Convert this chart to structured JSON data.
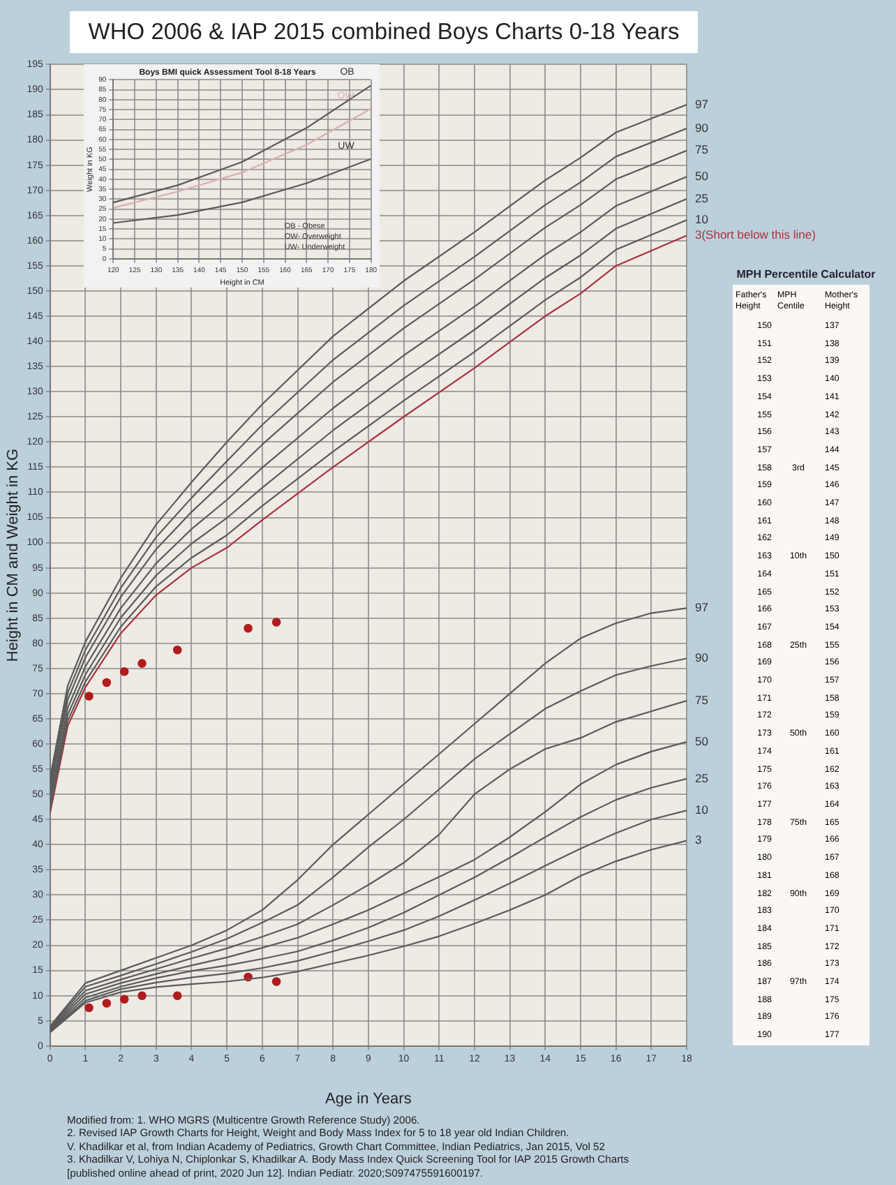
{
  "chart_data": [
    {
      "type": "line",
      "title": "WHO 2006 & IAP 2015 combined Boys Charts 0-18 Years",
      "xlabel": "Age in Years",
      "ylabel": "Height in CM and Weight in KG",
      "xlim": [
        0,
        18
      ],
      "xticks": [
        0,
        1,
        2,
        3,
        4,
        5,
        6,
        7,
        8,
        9,
        10,
        11,
        12,
        13,
        14,
        15,
        16,
        17,
        18
      ],
      "ylim": [
        0,
        195
      ],
      "yticks": [
        0,
        5,
        10,
        15,
        20,
        25,
        30,
        35,
        40,
        45,
        50,
        55,
        60,
        65,
        70,
        75,
        80,
        85,
        90,
        95,
        100,
        105,
        110,
        115,
        120,
        125,
        130,
        135,
        140,
        145,
        150,
        155,
        160,
        165,
        170,
        175,
        180,
        185,
        190,
        195
      ],
      "grid": true,
      "marker": "none",
      "series": [
        {
          "name": "97",
          "color": "#5a5a5a",
          "x": [
            0,
            0.5,
            1,
            2,
            3,
            4,
            5,
            6,
            8,
            10,
            12,
            14,
            15,
            16,
            18
          ],
          "values": [
            53.3,
            71.6,
            80.3,
            93.0,
            103.6,
            112,
            120,
            127.5,
            141,
            152,
            161.7,
            172,
            176.5,
            181.5,
            187
          ]
        },
        {
          "name": "90",
          "color": "#5a5a5a",
          "x": [
            0,
            0.5,
            1,
            2,
            3,
            4,
            5,
            6,
            8,
            10,
            12,
            14,
            15,
            16,
            18
          ],
          "values": [
            52.0,
            70.2,
            78.7,
            91.0,
            101.1,
            108.9,
            116.2,
            123.4,
            136.3,
            147.1,
            156.8,
            167.1,
            171.6,
            176.7,
            182.3
          ]
        },
        {
          "name": "75",
          "color": "#5a5a5a",
          "x": [
            0,
            0.5,
            1,
            2,
            3,
            4,
            5,
            6,
            8,
            10,
            12,
            14,
            15,
            16,
            18
          ],
          "values": [
            50.9,
            68.8,
            77.2,
            89.2,
            98.7,
            106.1,
            112.7,
            119.5,
            131.9,
            142.6,
            152.3,
            162.6,
            167.1,
            172.2,
            177.9
          ]
        },
        {
          "name": "50",
          "color": "#5a5a5a",
          "x": [
            0,
            0.5,
            1,
            2,
            3,
            4,
            5,
            6,
            8,
            10,
            12,
            14,
            15,
            16,
            18
          ],
          "values": [
            49.5,
            67.2,
            75.4,
            87.0,
            95.9,
            102.7,
            108.5,
            114.9,
            126.7,
            137.2,
            146.9,
            157.2,
            161.7,
            166.9,
            172.7
          ]
        },
        {
          "name": "25",
          "color": "#5a5a5a",
          "x": [
            0,
            0.5,
            1,
            2,
            3,
            4,
            5,
            6,
            8,
            10,
            12,
            14,
            15,
            16,
            18
          ],
          "values": [
            48.3,
            65.8,
            73.8,
            85.1,
            93.5,
            99.8,
            104.9,
            110.9,
            122.3,
            132.6,
            142.3,
            152.6,
            157.1,
            162.4,
            168.3
          ]
        },
        {
          "name": "10",
          "color": "#5a5a5a",
          "x": [
            0,
            0.5,
            1,
            2,
            3,
            4,
            5,
            6,
            8,
            10,
            12,
            14,
            15,
            16,
            18
          ],
          "values": [
            47.1,
            64.6,
            72.4,
            83.3,
            91.3,
            97.0,
            101.5,
            107.3,
            118.1,
            128.2,
            137.9,
            148.2,
            152.7,
            158.2,
            164.1
          ]
        },
        {
          "name": "3(Short below this line)",
          "color": "#a8323e",
          "x": [
            0,
            0.5,
            1,
            2,
            3,
            4,
            5,
            6,
            8,
            10,
            12,
            14,
            15,
            16,
            18
          ],
          "values": [
            46.3,
            63.6,
            71.3,
            82,
            89.6,
            95,
            99,
            104.5,
            115,
            125,
            134.7,
            145,
            149.5,
            155,
            161
          ]
        },
        {
          "name": "97",
          "color": "#5a5a5a",
          "x": [
            0,
            1,
            2,
            3,
            4,
            5,
            6,
            7,
            8,
            9,
            10,
            11,
            12,
            13,
            14,
            15,
            16,
            17,
            18
          ],
          "values": [
            3.9,
            12.5,
            15,
            17.5,
            20,
            23,
            27,
            33,
            40,
            46,
            52,
            58,
            64,
            70,
            76,
            81,
            84,
            86,
            87
          ]
        },
        {
          "name": "90",
          "color": "#5a5a5a",
          "x": [
            0,
            1,
            2,
            3,
            4,
            5,
            6,
            7,
            8,
            9,
            10,
            11,
            12,
            13,
            14,
            15,
            16,
            17,
            18
          ],
          "values": [
            3.7,
            11.8,
            14,
            16.3,
            18.7,
            21.3,
            24.5,
            28,
            33.5,
            39.5,
            45,
            51,
            57,
            62,
            67,
            70.5,
            73.7,
            75.5,
            77
          ]
        },
        {
          "name": "75",
          "color": "#5a5a5a",
          "x": [
            0,
            1,
            2,
            3,
            4,
            5,
            6,
            7,
            8,
            9,
            10,
            11,
            12,
            13,
            14,
            15,
            16,
            17,
            18
          ],
          "values": [
            3.5,
            11,
            13.2,
            15.3,
            17.4,
            19.4,
            21.7,
            24.2,
            28,
            32,
            36.4,
            42,
            50,
            55,
            59,
            61.2,
            64.4,
            66.5,
            68.6
          ]
        },
        {
          "name": "50",
          "color": "#5a5a5a",
          "x": [
            0,
            1,
            2,
            3,
            4,
            5,
            6,
            7,
            8,
            9,
            10,
            11,
            12,
            13,
            14,
            15,
            16,
            17,
            18
          ],
          "values": [
            3.3,
            10.3,
            12.5,
            14.3,
            16,
            17.6,
            19.5,
            21.5,
            24.2,
            27,
            30.3,
            33.6,
            37,
            41.5,
            46.5,
            52,
            55.9,
            58.5,
            60.4
          ]
        },
        {
          "name": "25",
          "color": "#5a5a5a",
          "x": [
            0,
            1,
            2,
            3,
            4,
            5,
            6,
            7,
            8,
            9,
            10,
            11,
            12,
            13,
            14,
            15,
            16,
            17,
            18
          ],
          "values": [
            3.1,
            9.6,
            11.8,
            13.5,
            14.9,
            16,
            17.3,
            18.8,
            21,
            23.5,
            26.5,
            30,
            33.5,
            37.4,
            41.5,
            45.5,
            48.9,
            51.3,
            53.1
          ]
        },
        {
          "name": "10",
          "color": "#5a5a5a",
          "x": [
            0,
            1,
            2,
            3,
            4,
            5,
            6,
            7,
            8,
            9,
            10,
            11,
            12,
            13,
            14,
            15,
            16,
            17,
            18
          ],
          "values": [
            2.9,
            9,
            11.3,
            12.6,
            13.6,
            14.4,
            15.5,
            16.9,
            18.8,
            20.8,
            23,
            25.8,
            29,
            32.3,
            35.8,
            39.2,
            42.3,
            45,
            46.8
          ]
        },
        {
          "name": "3",
          "color": "#5a5a5a",
          "x": [
            0,
            1,
            2,
            3,
            4,
            5,
            6,
            7,
            8,
            9,
            10,
            11,
            12,
            13,
            14,
            15,
            16,
            17,
            18
          ],
          "values": [
            2.7,
            8.6,
            10.7,
            11.7,
            12.3,
            12.8,
            13.6,
            14.8,
            16.4,
            18,
            19.8,
            21.8,
            24.3,
            27,
            30,
            33.8,
            36.7,
            39,
            40.8
          ]
        },
        {
          "type": "scatter",
          "marker": "circle",
          "color": "#b01c1c",
          "x": [
            1.1,
            1.6,
            2.1,
            2.6,
            3.6,
            5.6,
            6.4
          ],
          "values": [
            69.5,
            72.2,
            74.4,
            76.0,
            78.7,
            83.0,
            84.2
          ]
        },
        {
          "type": "scatter",
          "marker": "circle",
          "color": "#b01c1c",
          "x": [
            1.1,
            1.6,
            2.1,
            2.6,
            3.6,
            5.6,
            6.4
          ],
          "values": [
            7.6,
            8.5,
            9.3,
            10.0,
            10.0,
            13.7,
            12.8
          ]
        }
      ],
      "annotations": [
        "Modified from: 1. WHO MGRS (Multicentre Growth Reference Study) 2006.",
        "2. Revised IAP Growth Charts for Height, Weight and Body Mass Index for 5 to 18 year old Indian Children.",
        "V. Khadilkar et al, from Indian Academy of Pediatrics, Growth Chart Committee, Indian Pediatrics, Jan 2015, Vol 52",
        "3. Khadilkar V, Lohiya N, Chiplonkar S, Khadilkar A. Body Mass Index Quick Screening Tool for IAP 2015 Growth Charts",
        "[published online ahead of print, 2020 Jun 12]. Indian Pediatr. 2020;S097475591600197."
      ]
    },
    {
      "type": "line",
      "title": "Boys BMI quick Assessment Tool 8-18 Years",
      "xlabel": "Height in CM",
      "ylabel": "Weight in KG",
      "xlim": [
        120,
        180
      ],
      "xticks": [
        120,
        125,
        130,
        135,
        140,
        145,
        150,
        155,
        160,
        165,
        170,
        175,
        180
      ],
      "ylim": [
        0,
        90
      ],
      "yticks": [
        0,
        5,
        10,
        15,
        20,
        25,
        30,
        35,
        40,
        45,
        50,
        55,
        60,
        65,
        70,
        75,
        80,
        85,
        90
      ],
      "grid": true,
      "marker": "none",
      "x": [
        120,
        135,
        150,
        165,
        180
      ],
      "series": [
        {
          "name": "OB",
          "color": "#5a5a5a",
          "values": [
            28.3,
            37,
            48.7,
            65.8,
            87.2
          ]
        },
        {
          "name": "OW",
          "color": "#d9aeb0",
          "values": [
            25.6,
            33.8,
            43.4,
            57.3,
            75.5
          ]
        },
        {
          "name": "UW",
          "color": "#5a5a5a",
          "values": [
            18,
            22,
            28.4,
            38,
            50.2
          ]
        }
      ],
      "annotations": [
        "OB - Obese",
        "OW- Overweight",
        "UW- Underweight"
      ]
    },
    {
      "type": "heatmap",
      "title": "MPH  Percentile Calculator",
      "ylabel": "Father's Height",
      "y2label": "Mother's Height",
      "categories": [
        "MPH Centile"
      ],
      "y_categories": [
        "150",
        "151",
        "152",
        "153",
        "154",
        "155",
        "156",
        "157",
        "158",
        "159",
        "160",
        "161",
        "162",
        "163",
        "164",
        "165",
        "166",
        "167",
        "168",
        "169",
        "170",
        "171",
        "172",
        "173",
        "174",
        "175",
        "176",
        "177",
        "178",
        "179",
        "180",
        "181",
        "182",
        "183",
        "184",
        "185",
        "186",
        "187",
        "188",
        "189",
        "190"
      ],
      "y2_categories": [
        "137",
        "138",
        "139",
        "140",
        "141",
        "142",
        "143",
        "144",
        "145",
        "146",
        "147",
        "148",
        "149",
        "150",
        "151",
        "152",
        "153",
        "154",
        "155",
        "156",
        "157",
        "158",
        "159",
        "160",
        "161",
        "162",
        "163",
        "164",
        "165",
        "166",
        "167",
        "168",
        "169",
        "170",
        "171",
        "172",
        "173",
        "174",
        "175",
        "176",
        "177"
      ],
      "cells": [
        [
          null
        ],
        [
          null
        ],
        [
          null
        ],
        [
          null
        ],
        [
          null
        ],
        [
          null
        ],
        [
          null
        ],
        [
          null
        ],
        [
          null
        ],
        [
          null
        ],
        [
          null
        ],
        [
          null
        ],
        [
          null
        ],
        [
          null
        ],
        [
          null
        ],
        [
          null
        ],
        [
          null
        ],
        [
          null
        ],
        [
          null
        ],
        [
          null
        ],
        [
          null
        ],
        [
          null
        ],
        [
          null
        ],
        [
          null
        ],
        [
          null
        ],
        [
          null
        ],
        [
          null
        ],
        [
          null
        ],
        [
          null
        ],
        [
          null
        ],
        [
          null
        ],
        [
          null
        ],
        [
          null
        ],
        [
          null
        ],
        [
          null
        ],
        [
          null
        ],
        [
          null
        ],
        [
          null
        ],
        [
          null
        ],
        [
          null
        ],
        [
          null
        ]
      ],
      "cell_labels": [
        [
          null
        ],
        [
          null
        ],
        [
          null
        ],
        [
          null
        ],
        [
          null
        ],
        [
          null
        ],
        [
          null
        ],
        [
          null
        ],
        [
          "3rd"
        ],
        [
          null
        ],
        [
          null
        ],
        [
          null
        ],
        [
          null
        ],
        [
          "10th"
        ],
        [
          null
        ],
        [
          null
        ],
        [
          null
        ],
        [
          null
        ],
        [
          "25th"
        ],
        [
          null
        ],
        [
          null
        ],
        [
          null
        ],
        [
          null
        ],
        [
          "50th"
        ],
        [
          null
        ],
        [
          null
        ],
        [
          null
        ],
        [
          null
        ],
        [
          "75th"
        ],
        [
          null
        ],
        [
          null
        ],
        [
          null
        ],
        [
          "90th"
        ],
        [
          null
        ],
        [
          null
        ],
        [
          null
        ],
        [
          null
        ],
        [
          "97th"
        ],
        [
          null
        ],
        [
          null
        ],
        [
          null
        ]
      ]
    }
  ]
}
